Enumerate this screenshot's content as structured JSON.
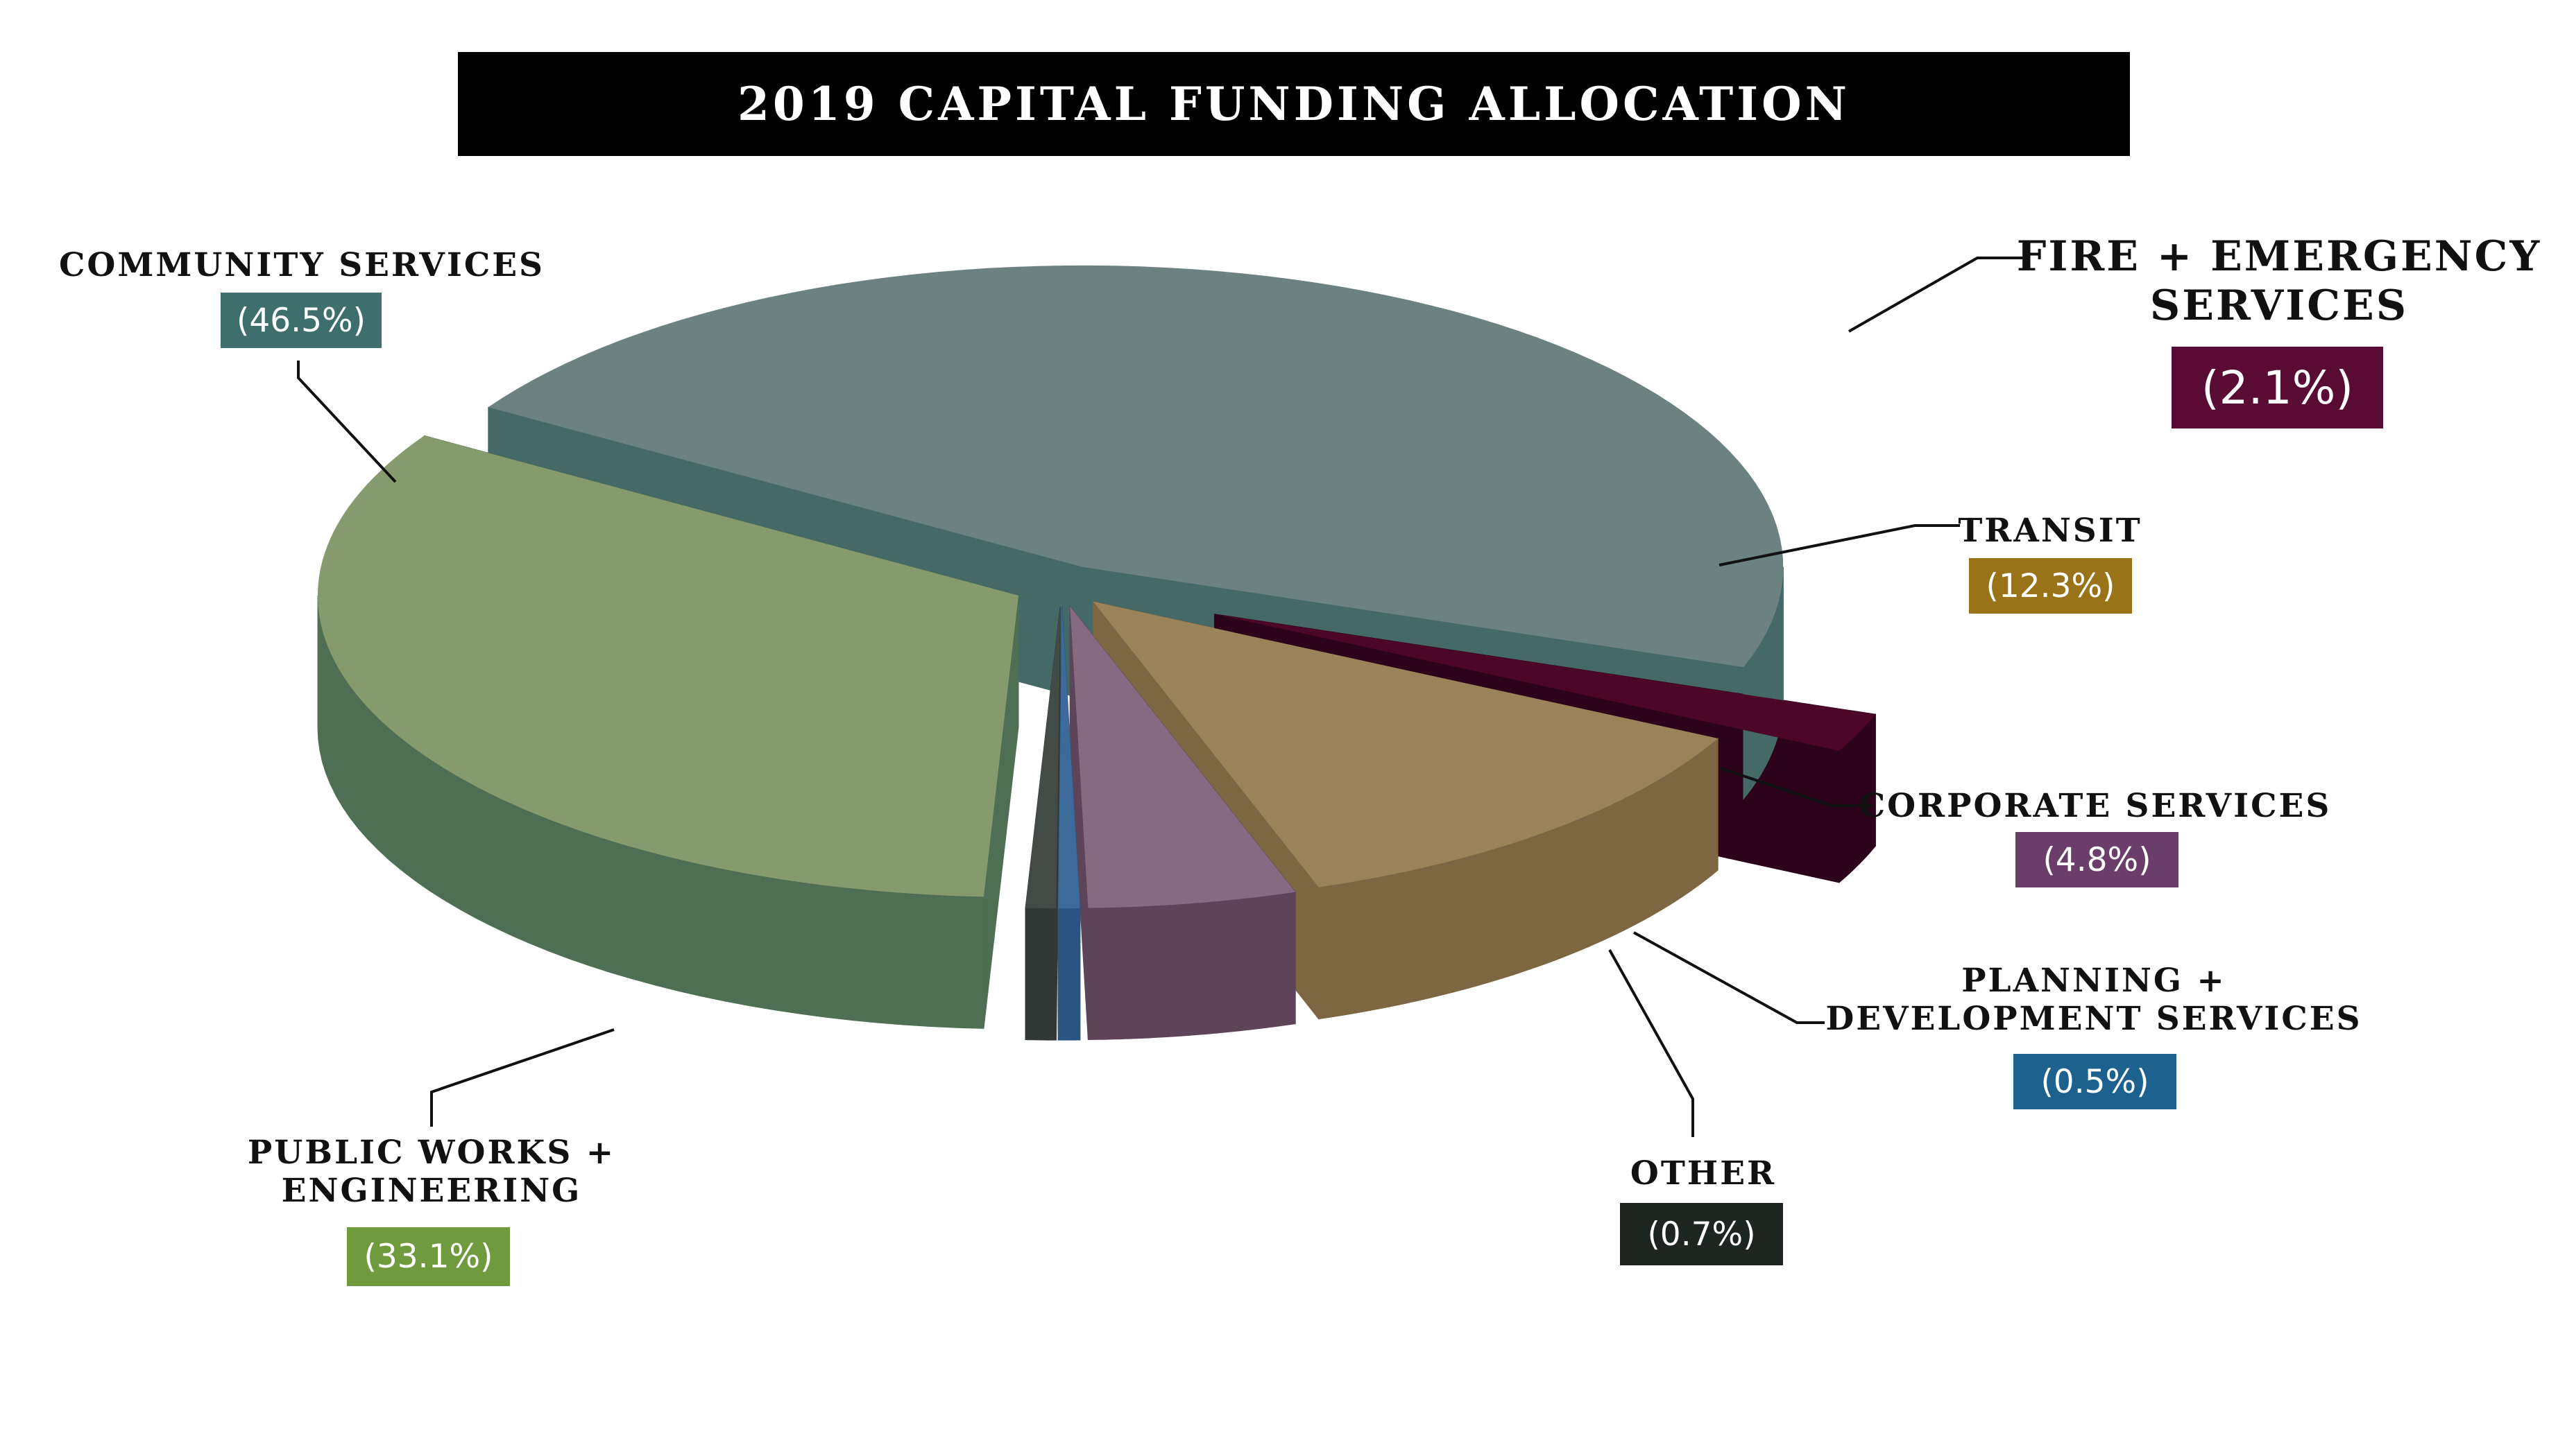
{
  "chart_data": {
    "type": "pie",
    "title": "2019 CAPITAL FUNDING ALLOCATION",
    "slices": [
      {
        "label": "COMMUNITY SERVICES",
        "value": 46.5,
        "value_label": "(46.5%)",
        "top_color": "#6b8280",
        "side_color": "#456966",
        "badge_color": "#3f6f6c"
      },
      {
        "label": "FIRE + EMERGENCY SERVICES",
        "value": 2.1,
        "value_label": "(2.1%)",
        "top_color": "#4b0628",
        "side_color": "#2c031a",
        "badge_color": "#5a0b33"
      },
      {
        "label": "TRANSIT",
        "value": 12.3,
        "value_label": "(12.3%)",
        "top_color": "#9b8359",
        "side_color": "#7d6642",
        "badge_color": "#9a7218"
      },
      {
        "label": "CORPORATE SERVICES",
        "value": 4.8,
        "value_label": "(4.8%)",
        "top_color": "#856a82",
        "side_color": "#5e4459",
        "badge_color": "#6b3d6b"
      },
      {
        "label": "PLANNING + DEVELOPMENT SERVICES",
        "value": 0.5,
        "value_label": "(0.5%)",
        "top_color": "#3c6a9a",
        "side_color": "#2a5580",
        "badge_color": "#1d628f"
      },
      {
        "label": "OTHER",
        "value": 0.7,
        "value_label": "(0.7%)",
        "top_color": "#434b47",
        "side_color": "#323836",
        "badge_color": "#1e2622"
      },
      {
        "label": "PUBLIC WORKS + ENGINEERING",
        "value": 33.1,
        "value_label": "(33.1%)",
        "top_color": "#869b6d",
        "side_color": "#4f6f55",
        "badge_color": "#6f9a3d"
      }
    ],
    "label_lines": {
      "COMMUNITY SERVICES": [
        "COMMUNITY SERVICES"
      ],
      "FIRE + EMERGENCY SERVICES": [
        "FIRE + EMERGENCY",
        "SERVICES"
      ],
      "TRANSIT": [
        "TRANSIT"
      ],
      "CORPORATE SERVICES": [
        "CORPORATE SERVICES"
      ],
      "PLANNING + DEVELOPMENT SERVICES": [
        "PLANNING +",
        "DEVELOPMENT SERVICES"
      ],
      "OTHER": [
        "OTHER"
      ],
      "PUBLIC WORKS + ENGINEERING": [
        "PUBLIC WORKS +",
        "ENGINEERING"
      ]
    },
    "exploded": [
      "FIRE + EMERGENCY SERVICES"
    ]
  }
}
